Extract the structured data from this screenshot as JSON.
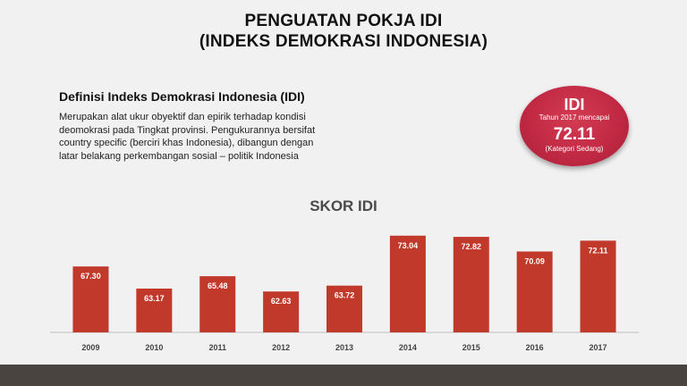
{
  "title_line1": "PENGUATAN POKJA IDI",
  "title_line2": "(INDEKS DEMOKRASI INDONESIA)",
  "definition": {
    "heading": "Definisi Indeks Demokrasi Indonesia (IDI)",
    "line1": "Merupakan alat ukur obyektif dan epirik terhadap kondisi",
    "line2": "deomokrasi pada Tingkat provinsi. Pengukurannya bersifat",
    "line3": "country specific (berciri khas Indonesia), dibangun dengan",
    "line4": "latar belakang perkembangan sosial – politik Indonesia"
  },
  "badge": {
    "label": "IDI",
    "subtitle": "Tahun 2017 mencapai",
    "value": "72.11",
    "note": "(Kategori Sedang)"
  },
  "colors": {
    "bar": "#c0392b",
    "badge": "#c22a44",
    "footer": "#4a4441"
  },
  "chart_data": {
    "type": "bar",
    "title": "SKOR IDI",
    "categories": [
      "2009",
      "2010",
      "2011",
      "2012",
      "2013",
      "2014",
      "2015",
      "2016",
      "2017"
    ],
    "values": [
      67.3,
      63.17,
      65.48,
      62.63,
      63.72,
      73.04,
      72.82,
      70.09,
      72.11
    ],
    "value_labels": [
      "67.30",
      "63.17",
      "65.48",
      "62.63",
      "63.72",
      "73.04",
      "72.82",
      "70.09",
      "72.11"
    ],
    "xlabel": "",
    "ylabel": "",
    "grid": false,
    "ylim": [
      55,
      75
    ]
  }
}
